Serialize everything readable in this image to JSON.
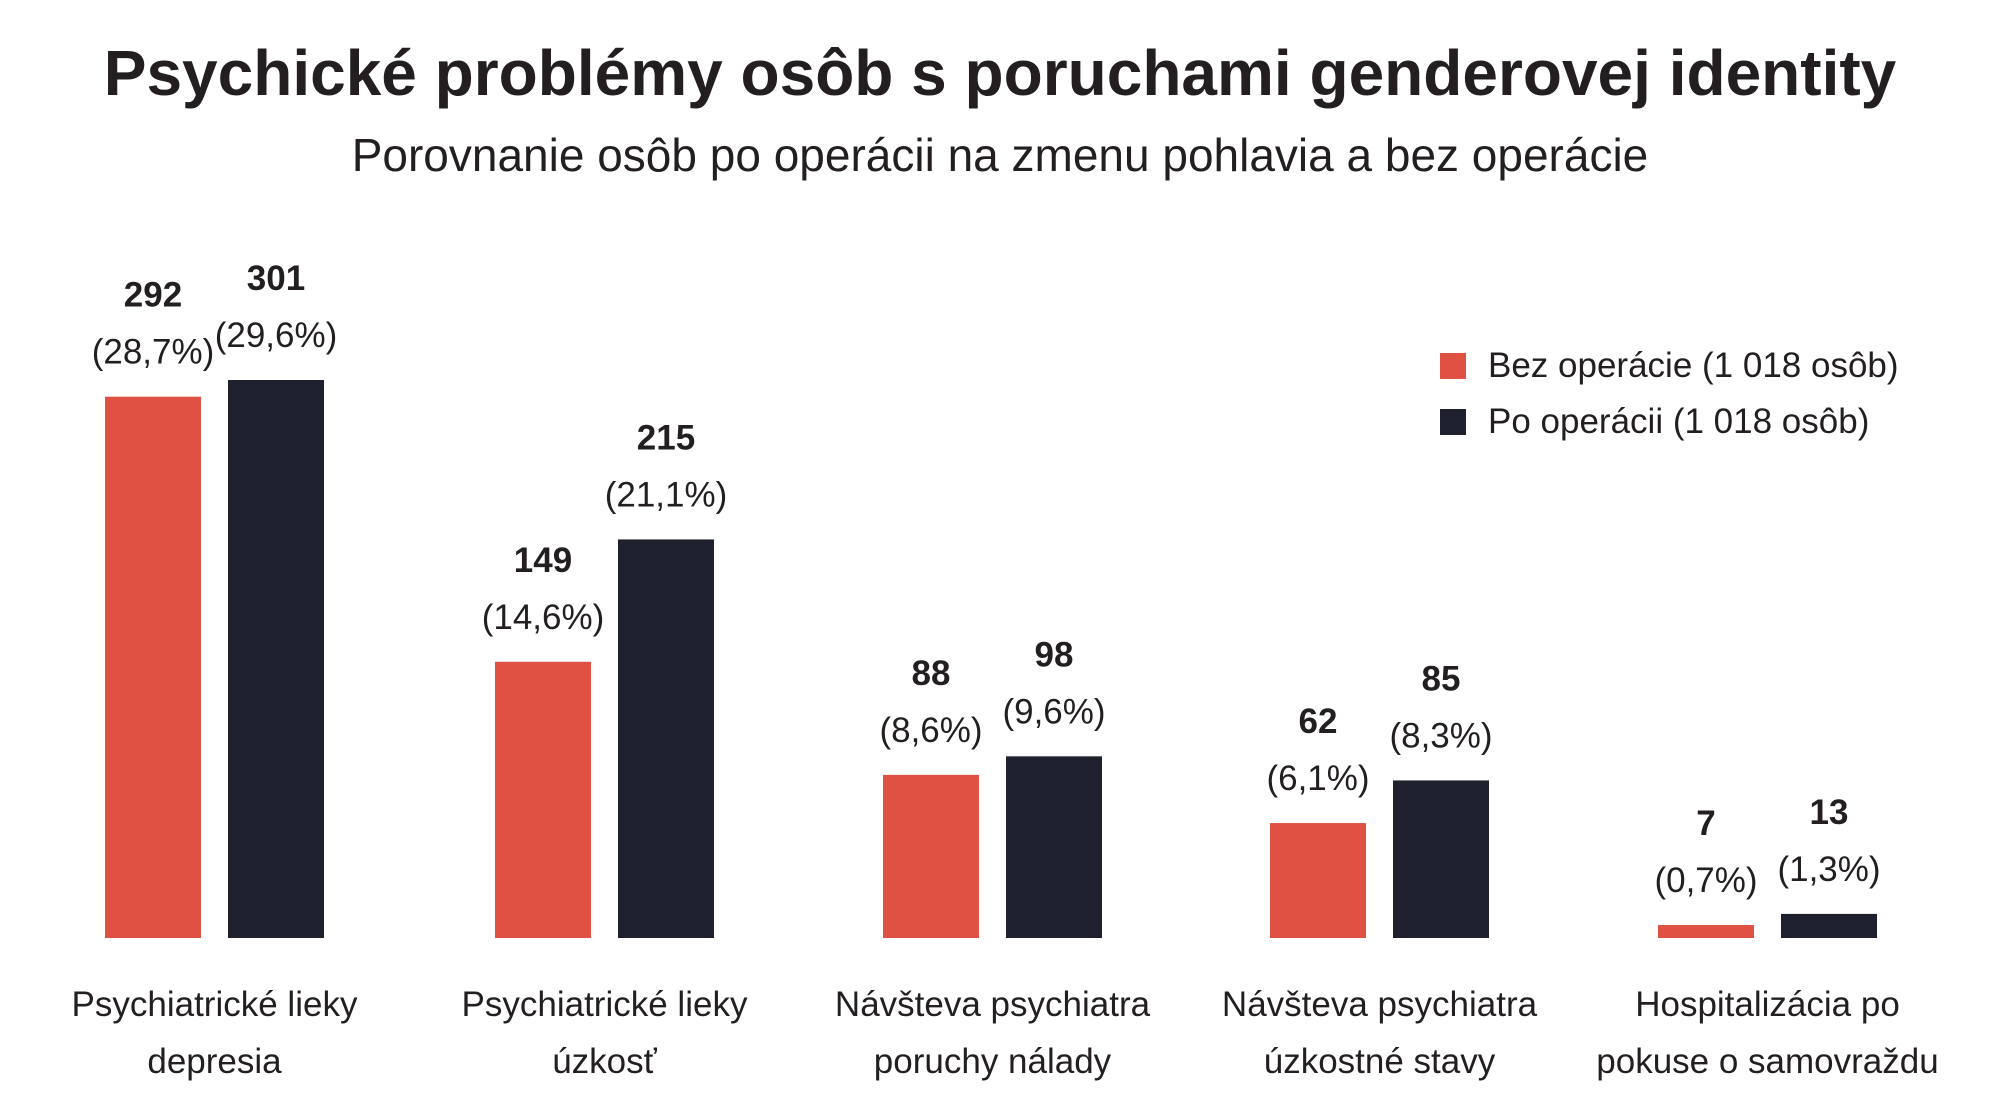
{
  "title": "Psychické problémy osôb s poruchami genderovej identity",
  "subtitle": "Porovnanie osôb po operácii na zmenu pohlavia a bez operácie",
  "colors": {
    "bez": "#df5143",
    "po": "#1f202e"
  },
  "legend": [
    {
      "label": "Bez operácie (1 018 osôb)",
      "color": "#df5143"
    },
    {
      "label": "Po operácii (1 018 osôb)",
      "color": "#1f202e"
    }
  ],
  "chart_data": {
    "type": "bar",
    "title": "Psychické problémy osôb s poruchami genderovej identity",
    "subtitle": "Porovnanie osôb po operácii na zmenu pohlavia a bez operácie",
    "legend_position": "top-right",
    "grid": false,
    "ylim": [
      0,
      301
    ],
    "categories": [
      [
        "Psychiatrické lieky",
        "depresia"
      ],
      [
        "Psychiatrické lieky",
        "úzkosť"
      ],
      [
        "Návšteva psychiatra",
        "poruchy nálady"
      ],
      [
        "Návšteva psychiatra",
        "úzkostné stavy"
      ],
      [
        "Hospitalizácia po",
        "pokuse o samovraždu"
      ]
    ],
    "series": [
      {
        "name": "Bez operácie (1 018 osôb)",
        "values": [
          292,
          149,
          88,
          62,
          7
        ],
        "percent_labels": [
          "(28,7%)",
          "(14,6%)",
          "(8,6%)",
          "(6,1%)",
          "(0,7%)"
        ]
      },
      {
        "name": "Po operácii (1 018 osôb)",
        "values": [
          301,
          215,
          98,
          85,
          13
        ],
        "percent_labels": [
          "(29,6%)",
          "(21,1%)",
          "(9,6%)",
          "(8,3%)",
          "(1,3%)"
        ]
      }
    ]
  }
}
